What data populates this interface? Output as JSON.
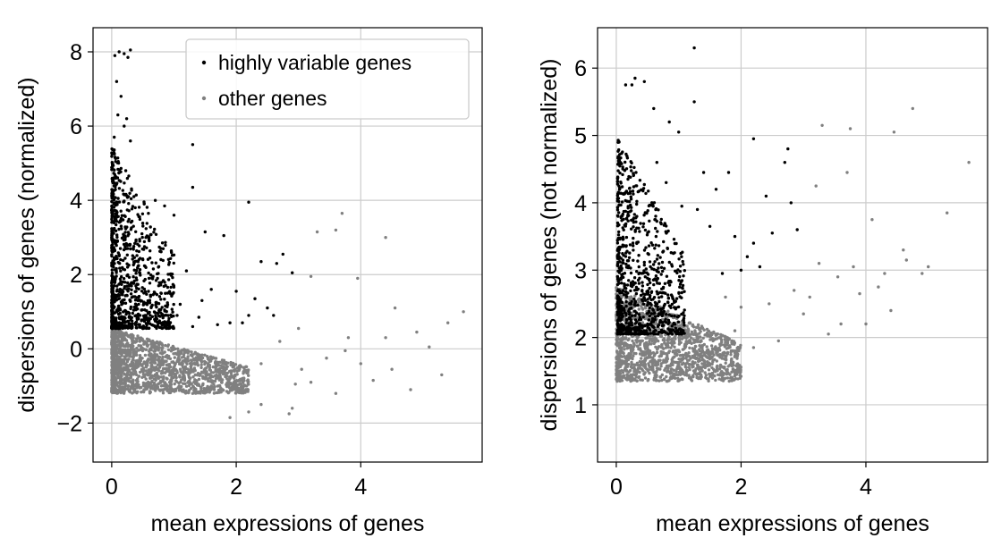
{
  "colors": {
    "highly_variable": "#000000",
    "other": "#808080",
    "grid": "#cccccc",
    "axis": "#000000"
  },
  "legend": {
    "highly_variable_label": "highly variable genes",
    "other_label": "other genes"
  },
  "chart_data": [
    {
      "type": "scatter",
      "panel": "left",
      "xlabel": "mean expressions of genes",
      "ylabel": "dispersions of genes (normalized)",
      "xlim": [
        -0.3,
        5.95
      ],
      "ylim": [
        -3.05,
        8.65
      ],
      "x_ticks": [
        0,
        2,
        4
      ],
      "x_tick_labels": [
        "0",
        "2",
        "4"
      ],
      "y_ticks": [
        -2,
        0,
        2,
        4,
        6,
        8
      ],
      "y_tick_labels": [
        "−2",
        "0",
        "2",
        "4",
        "6",
        "8"
      ],
      "grid": true,
      "legend_position": "top-right",
      "series": [
        {
          "name": "highly variable genes",
          "color": "#000000",
          "points": [
            [
              0.05,
              7.9
            ],
            [
              0.12,
              8.0
            ],
            [
              0.2,
              7.95
            ],
            [
              0.3,
              8.05
            ],
            [
              0.26,
              7.85
            ],
            [
              0.08,
              7.2
            ],
            [
              0.15,
              6.8
            ],
            [
              0.1,
              6.3
            ],
            [
              0.2,
              6.0
            ],
            [
              0.04,
              5.7
            ],
            [
              0.24,
              6.2
            ],
            [
              0.3,
              5.6
            ],
            [
              1.3,
              5.5
            ],
            [
              1.3,
              4.35
            ],
            [
              2.2,
              3.95
            ],
            [
              0.7,
              4.0
            ],
            [
              0.85,
              3.85
            ],
            [
              1.0,
              3.6
            ],
            [
              1.5,
              3.15
            ],
            [
              1.8,
              3.05
            ],
            [
              2.4,
              2.35
            ],
            [
              2.65,
              2.3
            ],
            [
              2.75,
              2.55
            ],
            [
              2.9,
              2.05
            ],
            [
              1.6,
              1.6
            ],
            [
              2.0,
              1.55
            ],
            [
              2.3,
              1.35
            ],
            [
              2.5,
              1.1
            ],
            [
              2.6,
              0.9
            ],
            [
              1.9,
              0.7
            ],
            [
              1.4,
              0.85
            ],
            [
              1.1,
              1.2
            ],
            [
              0.9,
              1.5
            ],
            [
              0.6,
              1.9
            ],
            [
              0.5,
              2.4
            ],
            [
              0.45,
              2.9
            ],
            [
              0.35,
              3.3
            ],
            [
              0.6,
              3.0
            ],
            [
              0.75,
              2.2
            ],
            [
              1.2,
              2.1
            ],
            [
              1.05,
              0.9
            ],
            [
              0.85,
              1.05
            ],
            [
              0.7,
              0.75
            ],
            [
              2.1,
              0.7
            ],
            [
              2.2,
              0.9
            ],
            [
              1.7,
              0.65
            ],
            [
              1.45,
              1.3
            ],
            [
              1.3,
              0.6
            ]
          ],
          "cluster": {
            "count": 950,
            "x_range": [
              0.0,
              1.0
            ],
            "y_range": [
              0.55,
              5.5
            ],
            "skew": 2.2
          }
        },
        {
          "name": "other genes",
          "color": "#808080",
          "points": [
            [
              3.3,
              3.15
            ],
            [
              3.7,
              3.65
            ],
            [
              3.6,
              3.2
            ],
            [
              4.4,
              3.0
            ],
            [
              5.65,
              1.0
            ],
            [
              5.4,
              0.7
            ],
            [
              4.55,
              1.1
            ],
            [
              3.95,
              1.9
            ],
            [
              3.2,
              1.95
            ],
            [
              4.9,
              0.45
            ],
            [
              5.1,
              0.05
            ],
            [
              5.3,
              -0.7
            ],
            [
              4.5,
              -0.55
            ],
            [
              4.2,
              -0.85
            ],
            [
              4.4,
              0.3
            ],
            [
              2.9,
              -1.6
            ],
            [
              2.4,
              -1.5
            ],
            [
              2.2,
              -1.7
            ],
            [
              1.9,
              -1.85
            ],
            [
              2.85,
              -1.75
            ],
            [
              3.2,
              -0.9
            ],
            [
              3.6,
              -1.2
            ],
            [
              4.0,
              -0.4
            ],
            [
              3.8,
              0.3
            ],
            [
              3.0,
              0.55
            ],
            [
              2.7,
              0.2
            ],
            [
              2.4,
              -0.4
            ],
            [
              2.1,
              -0.8
            ],
            [
              1.6,
              -1.0
            ],
            [
              1.3,
              -1.2
            ],
            [
              3.45,
              -0.25
            ],
            [
              4.8,
              -1.1
            ],
            [
              3.05,
              -0.55
            ],
            [
              3.75,
              -0.05
            ],
            [
              2.95,
              -0.95
            ]
          ],
          "cluster": {
            "count": 1600,
            "x_range": [
              0.0,
              2.2
            ],
            "y_range": [
              -1.2,
              0.55
            ],
            "skew": 1.8
          }
        }
      ]
    },
    {
      "type": "scatter",
      "panel": "right",
      "xlabel": "mean expressions of genes",
      "ylabel": "dispersions of genes (not normalized)",
      "xlim": [
        -0.3,
        5.95
      ],
      "ylim": [
        0.15,
        6.6
      ],
      "x_ticks": [
        0,
        2,
        4
      ],
      "x_tick_labels": [
        "0",
        "2",
        "4"
      ],
      "y_ticks": [
        1,
        2,
        3,
        4,
        5,
        6
      ],
      "y_tick_labels": [
        "1",
        "2",
        "3",
        "4",
        "5",
        "6"
      ],
      "grid": true,
      "series": [
        {
          "name": "highly variable genes",
          "color": "#000000",
          "points": [
            [
              1.25,
              6.3
            ],
            [
              1.25,
              5.5
            ],
            [
              0.3,
              5.85
            ],
            [
              0.25,
              5.75
            ],
            [
              0.45,
              5.8
            ],
            [
              0.15,
              5.75
            ],
            [
              0.6,
              5.4
            ],
            [
              0.85,
              5.2
            ],
            [
              1.0,
              5.05
            ],
            [
              2.2,
              4.95
            ],
            [
              2.75,
              4.8
            ],
            [
              2.7,
              4.6
            ],
            [
              1.4,
              4.45
            ],
            [
              1.6,
              4.2
            ],
            [
              1.8,
              4.45
            ],
            [
              2.4,
              4.1
            ],
            [
              2.8,
              4.0
            ],
            [
              2.9,
              3.6
            ],
            [
              2.5,
              3.55
            ],
            [
              2.2,
              3.4
            ],
            [
              1.9,
              3.5
            ],
            [
              2.1,
              3.2
            ],
            [
              1.5,
              3.65
            ],
            [
              1.3,
              3.9
            ],
            [
              1.05,
              3.95
            ],
            [
              0.8,
              4.3
            ],
            [
              0.65,
              4.6
            ],
            [
              2.3,
              3.05
            ],
            [
              2.0,
              3.0
            ],
            [
              1.7,
              2.95
            ]
          ],
          "cluster": {
            "count": 900,
            "x_range": [
              0.02,
              1.1
            ],
            "y_range": [
              2.05,
              5.0
            ],
            "skew": 2.0
          }
        },
        {
          "name": "other genes",
          "color": "#808080",
          "points": [
            [
              4.75,
              5.4
            ],
            [
              5.65,
              4.6
            ],
            [
              4.45,
              5.05
            ],
            [
              3.3,
              5.15
            ],
            [
              3.75,
              5.1
            ],
            [
              3.7,
              4.45
            ],
            [
              3.2,
              4.25
            ],
            [
              5.3,
              3.85
            ],
            [
              4.1,
              3.75
            ],
            [
              4.6,
              3.3
            ],
            [
              4.9,
              2.95
            ],
            [
              4.2,
              2.75
            ],
            [
              5.0,
              3.05
            ],
            [
              4.4,
              2.4
            ],
            [
              3.6,
              2.2
            ],
            [
              3.4,
              2.05
            ],
            [
              3.0,
              2.35
            ],
            [
              2.6,
              1.95
            ],
            [
              2.2,
              1.85
            ],
            [
              1.9,
              2.1
            ],
            [
              1.55,
              1.95
            ],
            [
              1.0,
              1.6
            ],
            [
              3.9,
              2.65
            ],
            [
              3.55,
              2.9
            ],
            [
              3.1,
              2.6
            ],
            [
              4.0,
              2.2
            ],
            [
              3.25,
              3.1
            ],
            [
              2.85,
              2.7
            ],
            [
              2.45,
              2.5
            ],
            [
              2.0,
              2.45
            ],
            [
              1.35,
              1.75
            ],
            [
              4.3,
              2.95
            ],
            [
              3.8,
              3.05
            ],
            [
              4.65,
              3.15
            ],
            [
              1.75,
              2.6
            ]
          ],
          "cluster": {
            "count": 1500,
            "x_range": [
              0.0,
              2.0
            ],
            "y_range": [
              1.35,
              2.75
            ],
            "skew": 1.6
          }
        }
      ]
    }
  ]
}
